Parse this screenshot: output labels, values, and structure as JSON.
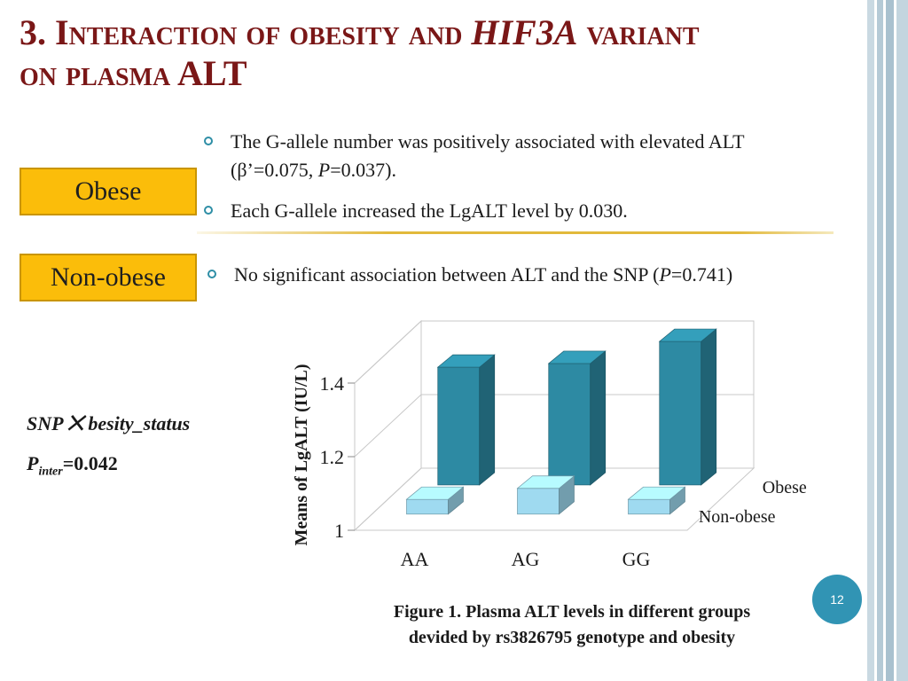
{
  "slide": {
    "title_part1": "3. Interaction of obesity and ",
    "title_gene": "HIF3A",
    "title_part2": " variant",
    "title_line2": "on plasma ALT",
    "page_number": "12"
  },
  "obese": {
    "label": "Obese",
    "bullet1_line1": "The G-allele number was positively associated with elevated ALT",
    "bullet1_line2_pre": "(β’=0.075, ",
    "bullet1_line2_p": "P",
    "bullet1_line2_post": "=0.037).",
    "bullet2": "Each G-allele increased the LgALT level by 0.030."
  },
  "nonobese": {
    "label": "Non-obese",
    "bullet_pre": "No significant association between ALT and the SNP (",
    "bullet_p": "P",
    "bullet_post": "=0.741)"
  },
  "interaction": {
    "snp_text": "SNP ⨉ besity_status",
    "p_label": "P",
    "p_sub": "inter",
    "p_value": "=0.042"
  },
  "caption": {
    "line1": "Figure 1. Plasma ALT levels in different groups",
    "line2": "devided by rs3826795 genotype and obesity"
  },
  "chart_data": {
    "type": "bar",
    "categories": [
      "AA",
      "AG",
      "GG"
    ],
    "series": [
      {
        "name": "Obese",
        "values": [
          1.32,
          1.33,
          1.39
        ],
        "color": "#2d8aa3"
      },
      {
        "name": "Non-obese",
        "values": [
          1.04,
          1.07,
          1.04
        ],
        "color": "#9fdaf0"
      }
    ],
    "ylabel": "Means of LgALT (IU/L)",
    "yticks": [
      "1",
      "1.2",
      "1.4"
    ],
    "ylim": [
      1,
      1.4
    ],
    "legend": "right",
    "grid": true
  },
  "colors": {
    "title": "#7a1717",
    "box": "#fbbd0a",
    "accent": "#2e8ea6"
  }
}
